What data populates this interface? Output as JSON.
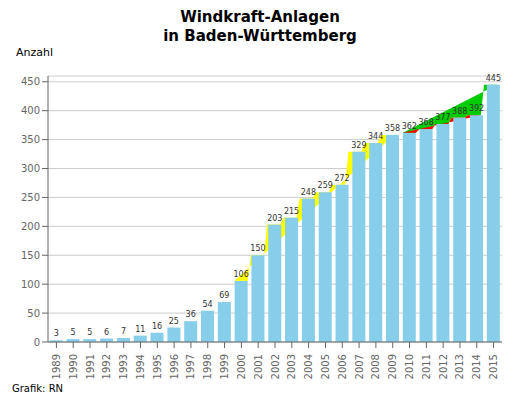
{
  "chart_data": {
    "type": "bar",
    "title": "Windkraft-Anlagen",
    "subtitle": "in Baden-Württemberg",
    "y_label": "Anzahl",
    "annotations": [
      "Grafik: RN"
    ],
    "categories": [
      "1989",
      "1990",
      "1991",
      "1992",
      "1993",
      "1994",
      "1995",
      "1996",
      "1997",
      "1998",
      "1999",
      "2000",
      "2001",
      "2002",
      "2003",
      "2004",
      "2005",
      "2006",
      "2007",
      "2008",
      "2009",
      "2010",
      "2011",
      "2012",
      "2013",
      "2014",
      "2015"
    ],
    "values": [
      3,
      5,
      5,
      6,
      7,
      11,
      16,
      25,
      36,
      54,
      69,
      106,
      150,
      203,
      215,
      248,
      259,
      272,
      329,
      344,
      358,
      362,
      368,
      377,
      388,
      392,
      445
    ],
    "color": "#87CEEB",
    "ylim": [
      0,
      460
    ],
    "yticks": [
      0,
      50,
      100,
      150,
      200,
      250,
      300,
      350,
      400,
      450
    ],
    "grid": true,
    "data_labels": true,
    "highlights": [
      {
        "from": "2000",
        "to": "2009",
        "color": "yellow"
      },
      {
        "from": "2010",
        "to": "2015",
        "color": "#00CC00"
      },
      {
        "from": "2010",
        "to": "2014",
        "color": "red"
      }
    ]
  }
}
